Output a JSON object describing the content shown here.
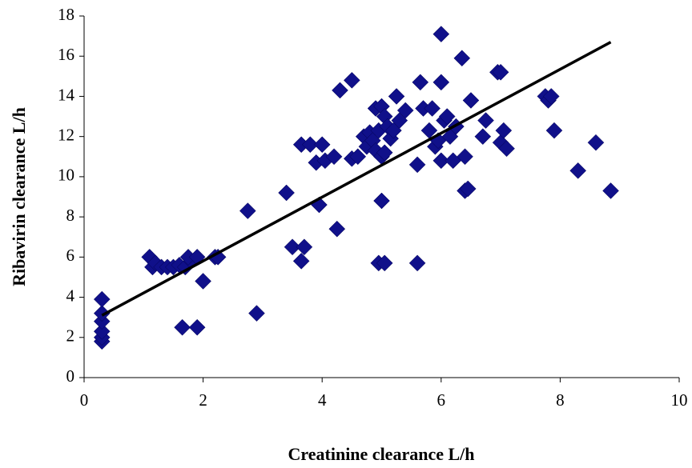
{
  "chart_data": {
    "type": "scatter",
    "x_label": "Creatinine clearance L/h",
    "y_label": "Ribavirin clearance L/h",
    "color": "#10108a",
    "xlim": [
      0,
      10
    ],
    "xticks": [
      0,
      2,
      4,
      6,
      8,
      10
    ],
    "ylim": [
      0,
      18
    ],
    "yticks": [
      0,
      2,
      4,
      6,
      8,
      10,
      12,
      14,
      16,
      18
    ],
    "grid": false,
    "x": [
      0.3,
      0.3,
      0.3,
      0.3,
      0.3,
      0.3,
      1.1,
      1.15,
      1.2,
      1.3,
      1.4,
      1.5,
      1.6,
      1.7,
      1.8,
      1.75,
      1.9,
      2.2,
      2.25,
      1.65,
      1.9,
      2.0,
      2.75,
      2.9,
      3.4,
      3.5,
      3.65,
      3.7,
      3.65,
      3.8,
      3.9,
      3.95,
      4.0,
      4.05,
      4.2,
      4.25,
      4.3,
      4.5,
      4.5,
      4.6,
      4.7,
      4.75,
      4.8,
      4.85,
      4.9,
      4.9,
      4.95,
      5.0,
      5.0,
      5.05,
      5.1,
      5.05,
      4.95,
      5.05,
      5.0,
      5.15,
      5.2,
      5.25,
      5.3,
      5.4,
      5.6,
      5.6,
      5.65,
      5.7,
      5.8,
      5.85,
      5.9,
      5.95,
      6.0,
      6.0,
      6.0,
      6.05,
      6.1,
      6.15,
      6.2,
      6.25,
      6.35,
      6.4,
      6.4,
      6.45,
      6.5,
      6.7,
      6.75,
      6.95,
      7.0,
      7.0,
      7.05,
      7.1,
      7.75,
      7.8,
      7.85,
      7.9,
      8.3,
      8.6,
      8.85
    ],
    "values": [
      1.8,
      2.0,
      2.3,
      2.8,
      3.2,
      3.9,
      6.0,
      5.5,
      5.7,
      5.5,
      5.5,
      5.5,
      5.6,
      5.5,
      5.8,
      6.0,
      6.0,
      6.0,
      6.0,
      2.5,
      2.5,
      4.8,
      8.3,
      3.2,
      9.2,
      6.5,
      5.8,
      6.5,
      11.6,
      11.6,
      10.7,
      8.6,
      11.6,
      10.8,
      11.0,
      7.4,
      14.3,
      14.8,
      10.9,
      11.0,
      12.0,
      11.5,
      12.2,
      11.8,
      13.4,
      11.3,
      12.3,
      11.0,
      13.5,
      13.0,
      12.5,
      11.2,
      5.7,
      5.7,
      8.8,
      11.9,
      12.3,
      14.0,
      12.8,
      13.3,
      10.6,
      5.7,
      14.7,
      13.4,
      12.3,
      13.4,
      11.5,
      11.8,
      14.7,
      17.1,
      10.8,
      12.8,
      13.0,
      12.0,
      10.8,
      12.5,
      15.9,
      11.0,
      9.3,
      9.4,
      13.8,
      12.0,
      12.8,
      15.2,
      15.2,
      11.7,
      12.3,
      11.4,
      14.0,
      13.8,
      14.0,
      12.3,
      10.3,
      11.7,
      9.3
    ],
    "trendline": {
      "x": [
        0.3,
        8.85
      ],
      "values": [
        3.1,
        16.7
      ],
      "color": "#000000"
    }
  }
}
